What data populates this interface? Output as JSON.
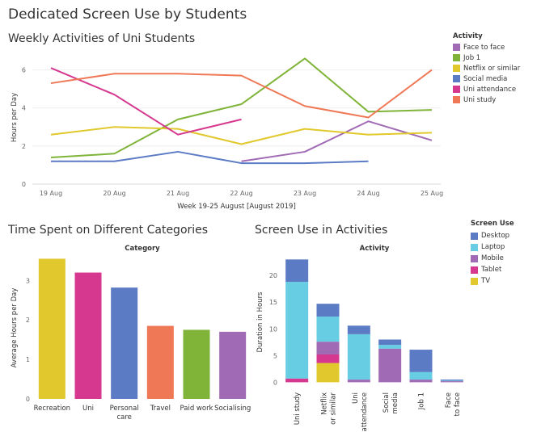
{
  "dashboard": {
    "title": "Dedicated Screen Use by Students"
  },
  "chart_data": [
    {
      "type": "line",
      "title": "Weekly Activities of Uni Students",
      "xlabel": "Week 19-25 August [August 2019]",
      "ylabel": "Hours per Day",
      "x": [
        "19 Aug",
        "20 Aug",
        "21 Aug",
        "22 Aug",
        "23 Aug",
        "24 Aug",
        "25 Aug"
      ],
      "yticks": [
        "0",
        "2",
        "4",
        "6"
      ],
      "ylim": [
        0,
        7
      ],
      "grid": true,
      "legend_title": "Activity",
      "series": [
        {
          "name": "Face to face",
          "color": "#a06ab4",
          "values": [
            null,
            null,
            null,
            1.2,
            1.7,
            3.3,
            2.3
          ]
        },
        {
          "name": "Job 1",
          "color": "#7fb439",
          "values": [
            1.4,
            1.6,
            3.4,
            4.2,
            6.6,
            3.8,
            3.9
          ]
        },
        {
          "name": "Netflix or similar",
          "color": "#e1c82c",
          "values": [
            2.6,
            3.0,
            2.9,
            2.1,
            2.9,
            2.6,
            2.7
          ]
        },
        {
          "name": "Social media",
          "color": "#5b7bc5",
          "values": [
            1.2,
            1.2,
            1.7,
            1.1,
            1.1,
            1.2,
            null
          ]
        },
        {
          "name": "Uni attendance",
          "color": "#d6388f",
          "values": [
            6.1,
            4.7,
            2.6,
            3.4,
            null,
            null,
            null
          ]
        },
        {
          "name": "Uni study",
          "color": "#ef7857",
          "values": [
            5.3,
            5.8,
            5.8,
            5.7,
            4.1,
            3.5,
            6.0
          ]
        }
      ]
    },
    {
      "type": "bar",
      "title": "Time Spent on Different Categories",
      "header": "Category",
      "ylabel": "Average Hours per Day",
      "yticks": [
        "0",
        "1",
        "2",
        "3"
      ],
      "ylim": [
        0,
        3.6
      ],
      "categories": [
        "Recreation",
        "Uni",
        "Personal care",
        "Travel",
        "Paid work",
        "Socialising"
      ],
      "values": [
        3.55,
        3.2,
        2.82,
        1.85,
        1.75,
        1.7
      ],
      "colors": [
        "#e1c82c",
        "#d6388f",
        "#5b7bc5",
        "#ef7857",
        "#7fb439",
        "#a06ab4"
      ]
    },
    {
      "type": "bar",
      "stacked": true,
      "title": "Screen Use in Activities",
      "header": "Activity",
      "ylabel": "Duration in Hours",
      "yticks": [
        "0",
        "5",
        "10",
        "15",
        "20"
      ],
      "ylim": [
        -1,
        23.5
      ],
      "legend_title": "Screen Use",
      "categories": [
        "Uni study",
        "Netflix or similar",
        "Uni attendance",
        "Social media",
        "Job 1",
        "Face to face"
      ],
      "series": [
        {
          "name": "TV",
          "color": "#e1c82c",
          "values": [
            0,
            3.6,
            0,
            0,
            0,
            0
          ]
        },
        {
          "name": "Tablet",
          "color": "#d6388f",
          "values": [
            0.7,
            1.6,
            0,
            0,
            0,
            0
          ]
        },
        {
          "name": "Mobile",
          "color": "#a06ab4",
          "values": [
            0,
            2.4,
            0.5,
            6.3,
            0.5,
            0.2
          ]
        },
        {
          "name": "Laptop",
          "color": "#67cde3",
          "values": [
            18.1,
            4.7,
            8.5,
            0.7,
            1.4,
            0.1
          ]
        },
        {
          "name": "Desktop",
          "color": "#5b7bc5",
          "values": [
            4.2,
            2.4,
            1.6,
            1.0,
            4.2,
            0.2
          ]
        }
      ]
    }
  ]
}
